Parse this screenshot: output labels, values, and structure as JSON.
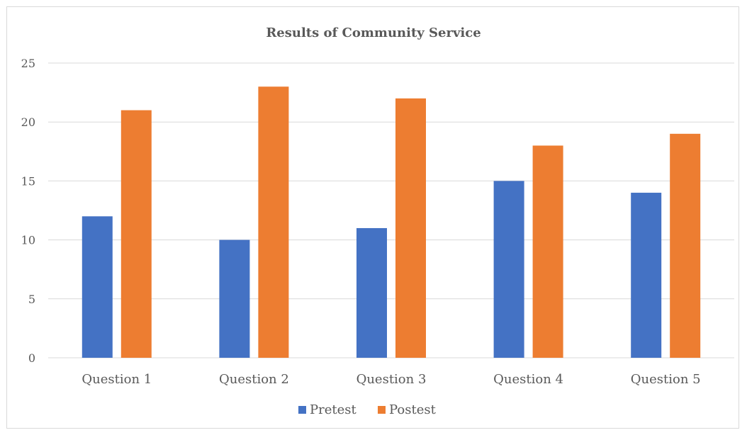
{
  "chart_data": {
    "type": "bar",
    "title": "Results of Community Service",
    "categories": [
      "Question 1",
      "Question 2",
      "Question 3",
      "Question 4",
      "Question 5"
    ],
    "series": [
      {
        "name": "Pretest",
        "values": [
          12,
          10,
          11,
          15,
          14
        ],
        "color": "#4472c4"
      },
      {
        "name": "Postest",
        "values": [
          21,
          23,
          22,
          18,
          19
        ],
        "color": "#ed7d31"
      }
    ],
    "yticks": [
      "0",
      "5",
      "10",
      "15",
      "20",
      "25"
    ],
    "ylim": [
      0,
      25
    ],
    "grid": true,
    "gridColor": "#d9d9d9",
    "legend_position": "bottom"
  }
}
